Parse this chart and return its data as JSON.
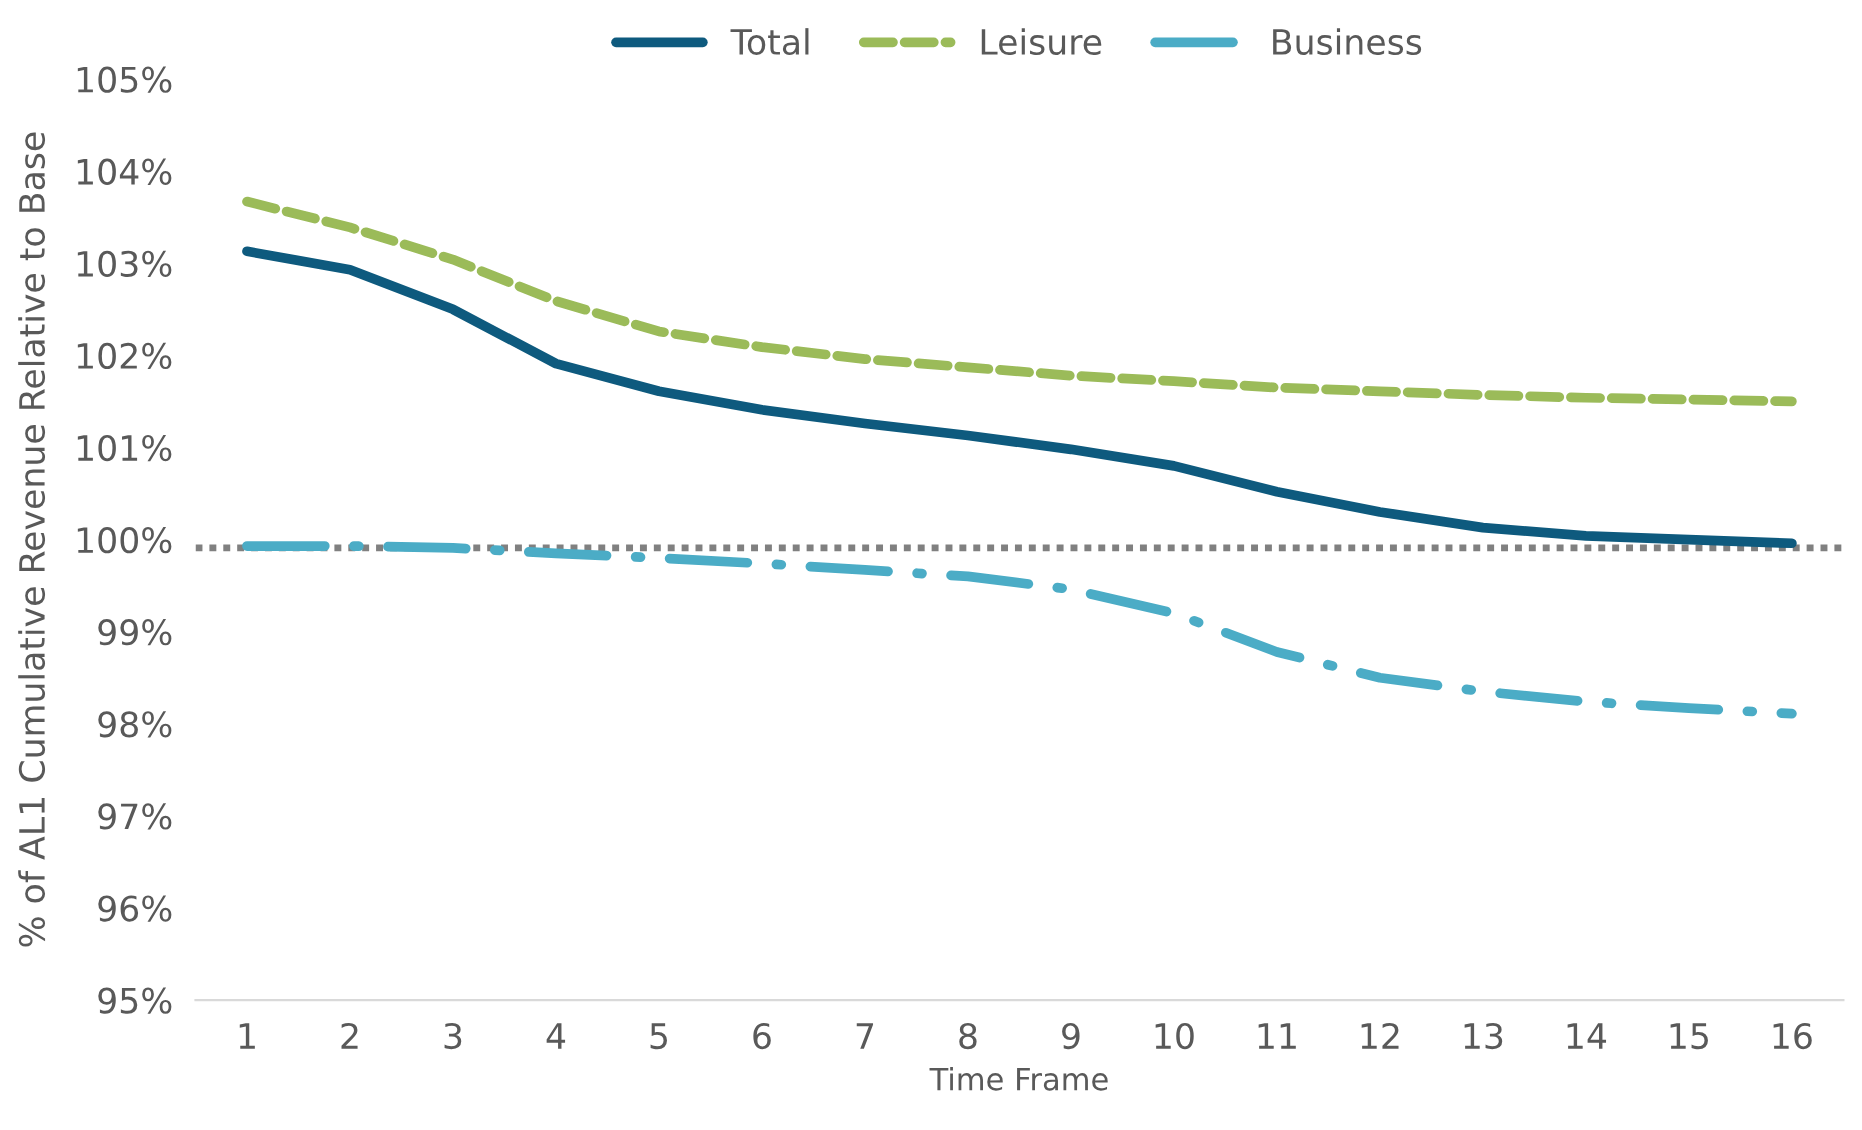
{
  "chart_data": {
    "type": "line",
    "xlabel": "Time Frame",
    "ylabel": "% of AL1 Cumulative Revenue Relative to Base",
    "categories": [
      "1",
      "2",
      "3",
      "4",
      "5",
      "6",
      "7",
      "8",
      "9",
      "10",
      "11",
      "12",
      "13",
      "14",
      "15",
      "16"
    ],
    "series": [
      {
        "name": "Total",
        "color": "#0e5a7e",
        "line_style": "solid",
        "values": [
          103.13,
          102.93,
          102.5,
          101.91,
          101.61,
          101.41,
          101.26,
          101.13,
          100.98,
          100.8,
          100.52,
          100.3,
          100.13,
          100.04,
          100.0,
          99.96
        ]
      },
      {
        "name": "Leisure",
        "color": "#9bbb59",
        "line_style": "dashed",
        "values": [
          103.67,
          103.39,
          103.04,
          102.59,
          102.26,
          102.09,
          101.96,
          101.87,
          101.78,
          101.72,
          101.65,
          101.61,
          101.57,
          101.54,
          101.52,
          101.5
        ]
      },
      {
        "name": "Business",
        "color": "#4bacc6",
        "line_style": "dashdot",
        "values": [
          99.93,
          99.93,
          99.91,
          99.85,
          99.8,
          99.74,
          99.67,
          99.6,
          99.46,
          99.2,
          98.78,
          98.5,
          98.35,
          98.24,
          98.17,
          98.11
        ]
      }
    ],
    "ylim": [
      95,
      105
    ],
    "yticks": [
      {
        "value": 95,
        "label": "95%"
      },
      {
        "value": 96,
        "label": "96%"
      },
      {
        "value": 97,
        "label": "97%"
      },
      {
        "value": 98,
        "label": "98%"
      },
      {
        "value": 99,
        "label": "99%"
      },
      {
        "value": 100,
        "label": "100%"
      },
      {
        "value": 101,
        "label": "101%"
      },
      {
        "value": 102,
        "label": "102%"
      },
      {
        "value": 103,
        "label": "103%"
      },
      {
        "value": 104,
        "label": "104%"
      },
      {
        "value": 105,
        "label": "105%"
      }
    ],
    "ref_lines": [
      {
        "axis": "y",
        "value": 99.91,
        "color": "#808080",
        "line_style": "dotted"
      }
    ],
    "grid": false,
    "legend": "top",
    "marker": "none"
  }
}
